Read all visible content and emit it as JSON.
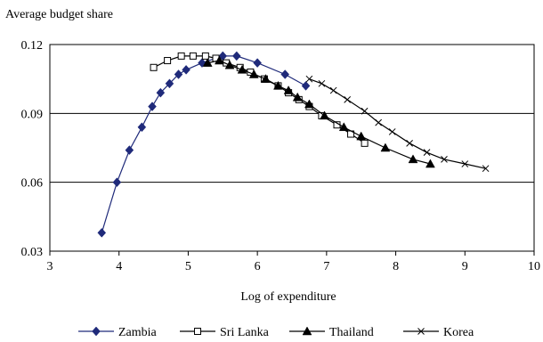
{
  "chart_data": {
    "type": "line",
    "title": "",
    "ylabel": "Average budget share",
    "xlabel": "Log of expenditure",
    "xlim": [
      3,
      10
    ],
    "ylim": [
      0.03,
      0.12
    ],
    "x_ticks": [
      "3",
      "4",
      "5",
      "6",
      "7",
      "8",
      "9",
      "10"
    ],
    "y_ticks": [
      "0.03",
      "0.06",
      "0.09",
      "0.12"
    ],
    "grid": "horizontal",
    "legend_position": "bottom",
    "series": [
      {
        "name": "Zambia",
        "marker": "diamond",
        "color": "#1f2a7a",
        "points": [
          [
            3.75,
            0.038
          ],
          [
            3.97,
            0.06
          ],
          [
            4.15,
            0.074
          ],
          [
            4.33,
            0.084
          ],
          [
            4.48,
            0.093
          ],
          [
            4.6,
            0.099
          ],
          [
            4.73,
            0.103
          ],
          [
            4.86,
            0.107
          ],
          [
            4.97,
            0.109
          ],
          [
            5.2,
            0.112
          ],
          [
            5.5,
            0.115
          ],
          [
            5.7,
            0.115
          ],
          [
            6.0,
            0.112
          ],
          [
            6.4,
            0.107
          ],
          [
            6.7,
            0.102
          ]
        ]
      },
      {
        "name": "Sri Lanka",
        "marker": "square-open",
        "color": "#000000",
        "points": [
          [
            4.5,
            0.11
          ],
          [
            4.7,
            0.113
          ],
          [
            4.9,
            0.115
          ],
          [
            5.07,
            0.115
          ],
          [
            5.25,
            0.115
          ],
          [
            5.4,
            0.114
          ],
          [
            5.55,
            0.112
          ],
          [
            5.75,
            0.11
          ],
          [
            5.9,
            0.108
          ],
          [
            6.1,
            0.105
          ],
          [
            6.3,
            0.102
          ],
          [
            6.45,
            0.099
          ],
          [
            6.6,
            0.096
          ],
          [
            6.75,
            0.093
          ],
          [
            6.93,
            0.089
          ],
          [
            7.15,
            0.085
          ],
          [
            7.35,
            0.081
          ],
          [
            7.55,
            0.077
          ]
        ]
      },
      {
        "name": "Thailand",
        "marker": "triangle",
        "color": "#000000",
        "points": [
          [
            5.28,
            0.112
          ],
          [
            5.45,
            0.113
          ],
          [
            5.6,
            0.111
          ],
          [
            5.78,
            0.109
          ],
          [
            5.95,
            0.107
          ],
          [
            6.12,
            0.105
          ],
          [
            6.3,
            0.102
          ],
          [
            6.45,
            0.1
          ],
          [
            6.58,
            0.097
          ],
          [
            6.75,
            0.094
          ],
          [
            6.97,
            0.089
          ],
          [
            7.25,
            0.084
          ],
          [
            7.5,
            0.08
          ],
          [
            7.85,
            0.075
          ],
          [
            8.25,
            0.07
          ],
          [
            8.5,
            0.068
          ]
        ]
      },
      {
        "name": "Korea",
        "marker": "cross",
        "color": "#000000",
        "points": [
          [
            6.75,
            0.105
          ],
          [
            6.93,
            0.103
          ],
          [
            7.1,
            0.1
          ],
          [
            7.3,
            0.096
          ],
          [
            7.55,
            0.091
          ],
          [
            7.75,
            0.086
          ],
          [
            7.95,
            0.082
          ],
          [
            8.2,
            0.077
          ],
          [
            8.45,
            0.073
          ],
          [
            8.7,
            0.07
          ],
          [
            9.0,
            0.068
          ],
          [
            9.3,
            0.066
          ]
        ]
      }
    ]
  }
}
